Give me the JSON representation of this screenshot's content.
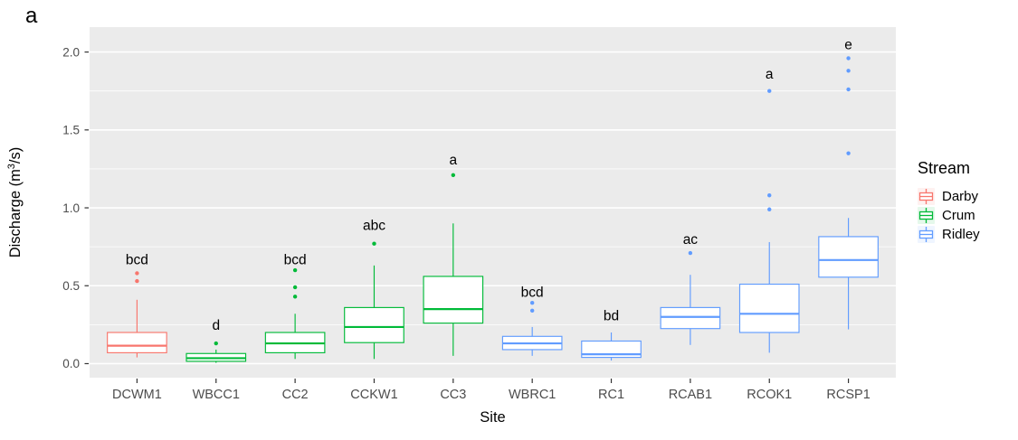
{
  "meta": {
    "panel_label": "a"
  },
  "legend": {
    "title": "Stream",
    "items": [
      {
        "label": "Darby",
        "color": "#F8766D"
      },
      {
        "label": "Crum",
        "color": "#00BA38"
      },
      {
        "label": "Ridley",
        "color": "#619CFF"
      }
    ]
  },
  "chart_data": {
    "type": "boxplot",
    "title": "",
    "xlabel": "Site",
    "ylabel": "Discharge (m³/s)",
    "ylabel_parts": {
      "pre": "Discharge (m",
      "sup": "3",
      "post": "/s)"
    },
    "ylim": [
      -0.09,
      2.16
    ],
    "grid": "on",
    "legend_position": "right",
    "panel_bg": "#EBEBEB",
    "gridline_color": "#FFFFFF",
    "tick_label_color": "#4D4D4D",
    "tick_mark_color": "#333333",
    "y_major_ticks": {
      "values": [
        0.0,
        0.5,
        1.0,
        1.5,
        2.0
      ],
      "labels": [
        "0.0",
        "0.5",
        "1.0",
        "1.5",
        "2.0"
      ]
    },
    "y_minor_gridlines": [
      0.25,
      0.75,
      1.25,
      1.75
    ],
    "categories": [
      "DCWM1",
      "WBCC1",
      "CC2",
      "CCKW1",
      "CC3",
      "WBRC1",
      "RC1",
      "RCAB1",
      "RCOK1",
      "RCSP1"
    ],
    "boxes": [
      {
        "site": "DCWM1",
        "stream": "Darby",
        "whisker_low": 0.04,
        "q1": 0.07,
        "median": 0.115,
        "q3": 0.2,
        "whisker_high": 0.41,
        "outliers": [
          0.53,
          0.58
        ],
        "sig_letter": "bcd",
        "letter_y": 0.67
      },
      {
        "site": "WBCC1",
        "stream": "Crum",
        "whisker_low": 0.005,
        "q1": 0.015,
        "median": 0.035,
        "q3": 0.065,
        "whisker_high": 0.09,
        "outliers": [
          0.13
        ],
        "sig_letter": "d",
        "letter_y": 0.25
      },
      {
        "site": "CC2",
        "stream": "Crum",
        "whisker_low": 0.03,
        "q1": 0.07,
        "median": 0.13,
        "q3": 0.2,
        "whisker_high": 0.32,
        "outliers": [
          0.43,
          0.49,
          0.6
        ],
        "sig_letter": "bcd",
        "letter_y": 0.67
      },
      {
        "site": "CCKW1",
        "stream": "Crum",
        "whisker_low": 0.03,
        "q1": 0.135,
        "median": 0.235,
        "q3": 0.36,
        "whisker_high": 0.63,
        "outliers": [
          0.77
        ],
        "sig_letter": "abc",
        "letter_y": 0.89
      },
      {
        "site": "CC3",
        "stream": "Crum",
        "whisker_low": 0.05,
        "q1": 0.26,
        "median": 0.35,
        "q3": 0.56,
        "whisker_high": 0.9,
        "outliers": [
          1.21
        ],
        "sig_letter": "a",
        "letter_y": 1.31
      },
      {
        "site": "WBRC1",
        "stream": "Ridley",
        "whisker_low": 0.05,
        "q1": 0.09,
        "median": 0.13,
        "q3": 0.175,
        "whisker_high": 0.235,
        "outliers": [
          0.34,
          0.39
        ],
        "sig_letter": "bcd",
        "letter_y": 0.46
      },
      {
        "site": "RC1",
        "stream": "Ridley",
        "whisker_low": 0.02,
        "q1": 0.04,
        "median": 0.06,
        "q3": 0.145,
        "whisker_high": 0.2,
        "outliers": [],
        "sig_letter": "bd",
        "letter_y": 0.31
      },
      {
        "site": "RCAB1",
        "stream": "Ridley",
        "whisker_low": 0.12,
        "q1": 0.225,
        "median": 0.3,
        "q3": 0.36,
        "whisker_high": 0.57,
        "outliers": [
          0.71
        ],
        "sig_letter": "ac",
        "letter_y": 0.8
      },
      {
        "site": "RCOK1",
        "stream": "Ridley",
        "whisker_low": 0.07,
        "q1": 0.2,
        "median": 0.32,
        "q3": 0.51,
        "whisker_high": 0.78,
        "outliers": [
          0.99,
          1.08,
          1.75
        ],
        "sig_letter": "a",
        "letter_y": 1.86
      },
      {
        "site": "RCSP1",
        "stream": "Ridley",
        "whisker_low": 0.22,
        "q1": 0.555,
        "median": 0.665,
        "q3": 0.815,
        "whisker_high": 0.935,
        "outliers": [
          1.35,
          1.76,
          1.88,
          1.96
        ],
        "sig_letter": "e",
        "letter_y": 2.05
      }
    ]
  }
}
